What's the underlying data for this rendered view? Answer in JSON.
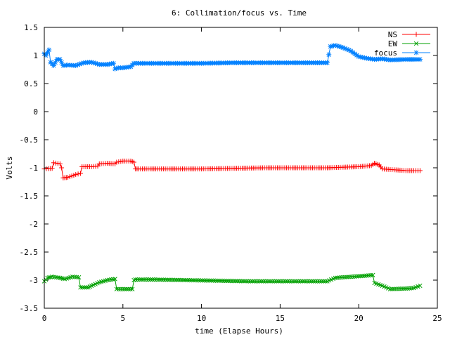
{
  "chart_data": {
    "type": "line",
    "title": "6: Collimation/focus vs. Time",
    "xlabel": "time (Elapse Hours)",
    "ylabel": "Volts",
    "xlim": [
      0,
      25
    ],
    "ylim": [
      -3.5,
      1.5
    ],
    "xticks": [
      0,
      5,
      10,
      15,
      20,
      25
    ],
    "xtick_labels": [
      "0",
      "5",
      "10",
      "15",
      "20",
      "25"
    ],
    "yticks": [
      -3.5,
      -3,
      -2.5,
      -2,
      -1.5,
      -1,
      -0.5,
      0,
      0.5,
      1,
      1.5
    ],
    "ytick_labels": [
      "-3.5",
      "-3",
      "-2.5",
      "-2",
      "-1.5",
      "-1",
      "-0.5",
      "0",
      "0.5",
      "1",
      "1.5"
    ],
    "grid": false,
    "legend_position": "top-right",
    "series": [
      {
        "name": "NS",
        "color": "#ff0000",
        "marker": "plus",
        "x": [
          0,
          0.5,
          0.6,
          1.0,
          1.1,
          1.2,
          1.5,
          2.0,
          2.3,
          2.4,
          3.0,
          3.4,
          3.5,
          4.0,
          4.5,
          4.6,
          5.0,
          5.5,
          5.7,
          5.8,
          6.0,
          10.0,
          12.0,
          14.0,
          16.0,
          18.0,
          20.0,
          20.8,
          21.0,
          21.3,
          21.5,
          22.0,
          23.0,
          23.5,
          23.9
        ],
        "y": [
          -1.02,
          -1.01,
          -0.91,
          -0.93,
          -1.0,
          -1.18,
          -1.17,
          -1.12,
          -1.1,
          -0.98,
          -0.98,
          -0.97,
          -0.93,
          -0.92,
          -0.93,
          -0.9,
          -0.88,
          -0.88,
          -0.9,
          -1.02,
          -1.02,
          -1.02,
          -1.01,
          -1.0,
          -1.0,
          -1.0,
          -0.98,
          -0.96,
          -0.92,
          -0.95,
          -1.02,
          -1.03,
          -1.05,
          -1.05,
          -1.05
        ]
      },
      {
        "name": "EW",
        "color": "#00a000",
        "marker": "cross",
        "x": [
          0,
          0.2,
          0.5,
          1.0,
          1.3,
          1.8,
          2.2,
          2.3,
          2.8,
          3.0,
          3.5,
          4.0,
          4.5,
          4.6,
          5.0,
          5.6,
          5.7,
          5.8,
          7.0,
          9.0,
          11.0,
          13.0,
          15.0,
          17.0,
          18.0,
          18.5,
          19.5,
          20.5,
          20.9,
          21.0,
          21.5,
          22.0,
          23.0,
          23.5,
          23.9
        ],
        "y": [
          -3.02,
          -2.96,
          -2.94,
          -2.96,
          -2.98,
          -2.94,
          -2.95,
          -3.13,
          -3.13,
          -3.1,
          -3.04,
          -3.0,
          -2.98,
          -3.16,
          -3.16,
          -3.16,
          -3.0,
          -2.99,
          -2.99,
          -3.0,
          -3.01,
          -3.02,
          -3.02,
          -3.02,
          -3.02,
          -2.96,
          -2.94,
          -2.92,
          -2.91,
          -3.05,
          -3.1,
          -3.16,
          -3.15,
          -3.14,
          -3.1
        ]
      },
      {
        "name": "focus",
        "color": "#0080ff",
        "marker": "star",
        "x": [
          0,
          0.1,
          0.3,
          0.4,
          0.6,
          0.8,
          1.0,
          1.2,
          1.5,
          2.0,
          2.5,
          3.0,
          3.5,
          4.0,
          4.4,
          4.5,
          4.7,
          5.0,
          5.5,
          5.7,
          6.0,
          8.0,
          10.0,
          12.0,
          14.0,
          16.0,
          17.0,
          18.0,
          18.2,
          18.5,
          19.0,
          19.5,
          20.0,
          20.5,
          21.0,
          21.5,
          22.0,
          23.0,
          23.9
        ],
        "y": [
          1.03,
          1.0,
          1.1,
          0.88,
          0.82,
          0.93,
          0.93,
          0.82,
          0.83,
          0.82,
          0.87,
          0.88,
          0.84,
          0.84,
          0.86,
          0.76,
          0.78,
          0.78,
          0.8,
          0.86,
          0.86,
          0.86,
          0.86,
          0.87,
          0.87,
          0.87,
          0.87,
          0.87,
          1.16,
          1.18,
          1.14,
          1.08,
          0.98,
          0.95,
          0.93,
          0.94,
          0.92,
          0.93,
          0.93
        ]
      }
    ]
  }
}
